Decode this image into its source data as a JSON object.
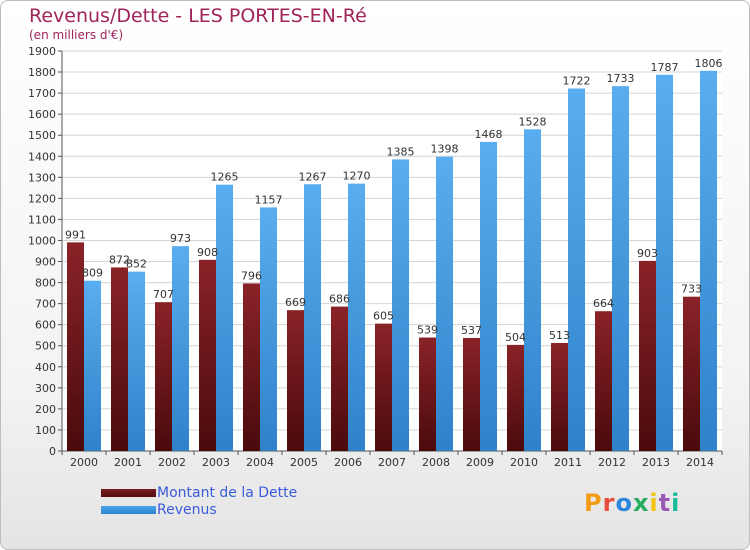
{
  "header": {
    "title": "Revenus/Dette - LES PORTES-EN-Ré",
    "subtitle": "(en milliers d'€)"
  },
  "logo": {
    "text": "Proxiti",
    "colors": [
      "#f39c12",
      "#e74c3c",
      "#2e86de",
      "#27ae60",
      "#f1c40f",
      "#9b59b6",
      "#1abc9c"
    ]
  },
  "colors": {
    "debt": "#7a1d22",
    "debt_dark": "#520d10",
    "revenue": "#4aa3e8",
    "revenue_dark": "#2f86cf",
    "title": "#a0245a",
    "legend_text": "#3b5bdb"
  },
  "legend": {
    "position": "bottom-left",
    "items": [
      {
        "label": "Montant de la Dette",
        "series": 0
      },
      {
        "label": "Revenus",
        "series": 1
      }
    ]
  },
  "chart_data": {
    "type": "bar",
    "title": "Revenus/Dette - LES PORTES-EN-Ré",
    "subtitle": "(en milliers d'€)",
    "xlabel": "",
    "ylabel": "",
    "ylim": [
      0,
      1900
    ],
    "ytick_step": 100,
    "grid": true,
    "categories": [
      "2000",
      "2001",
      "2002",
      "2003",
      "2004",
      "2005",
      "2006",
      "2007",
      "2008",
      "2009",
      "2010",
      "2011",
      "2012",
      "2013",
      "2014"
    ],
    "series": [
      {
        "name": "Montant de la Dette",
        "values": [
          991,
          872,
          707,
          908,
          796,
          669,
          686,
          605,
          539,
          537,
          504,
          513,
          664,
          903,
          733
        ]
      },
      {
        "name": "Revenus",
        "values": [
          809,
          852,
          973,
          1265,
          1157,
          1267,
          1270,
          1385,
          1398,
          1468,
          1528,
          1722,
          1733,
          1787,
          1806
        ]
      }
    ]
  }
}
